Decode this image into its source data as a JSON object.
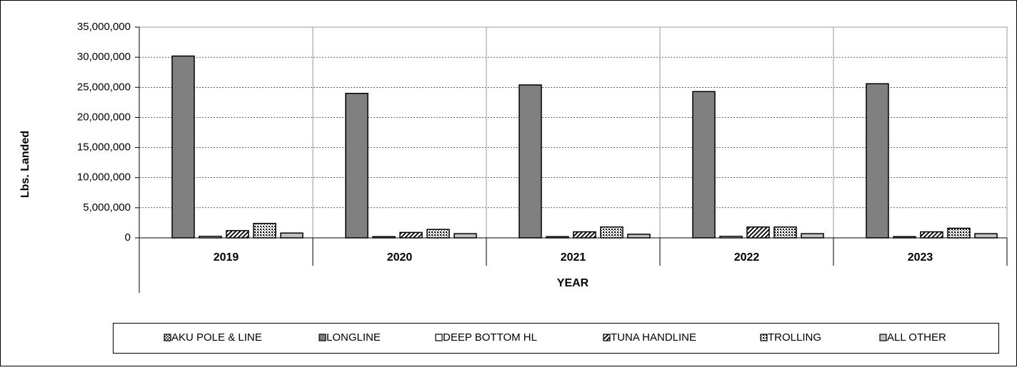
{
  "chart_data": {
    "type": "bar",
    "x_label": "YEAR",
    "y_label": "Lbs. Landed",
    "categories": [
      "2019",
      "2020",
      "2021",
      "2022",
      "2023"
    ],
    "series": [
      {
        "name": "AKU POLE & LINE",
        "color": "#404040",
        "pattern": "checker",
        "values": [
          0,
          0,
          0,
          0,
          0
        ]
      },
      {
        "name": "LONGLINE",
        "color": "#808080",
        "pattern": "solid",
        "values": [
          30200000,
          24000000,
          25400000,
          24300000,
          25600000
        ]
      },
      {
        "name": "DEEP BOTTOM HL",
        "color": "#ffffff",
        "pattern": "solid",
        "values": [
          250000,
          200000,
          200000,
          250000,
          200000
        ]
      },
      {
        "name": "TUNA HANDLINE",
        "color": "#000000",
        "pattern": "diagonal",
        "values": [
          1200000,
          900000,
          1000000,
          1800000,
          1000000
        ]
      },
      {
        "name": "TROLLING",
        "color": "#000000",
        "pattern": "dots",
        "values": [
          2400000,
          1400000,
          1800000,
          1800000,
          1600000
        ]
      },
      {
        "name": "ALL OTHER",
        "color": "#c0c0c0",
        "pattern": "solid",
        "values": [
          800000,
          700000,
          600000,
          700000,
          700000
        ]
      }
    ],
    "ylim": [
      0,
      35000000
    ],
    "yticks": [
      0,
      {
        "value": 5000000,
        "label": "5,000,000"
      },
      {
        "value": 10000000,
        "label": "10,000,000"
      },
      {
        "value": 15000000,
        "label": "15,000,000"
      },
      {
        "value": 20000000,
        "label": "20,000,000"
      },
      {
        "value": 25000000,
        "label": "25,000,000"
      },
      {
        "value": 30000000,
        "label": "30,000,000"
      },
      {
        "value": 35000000,
        "label": "35,000,000"
      }
    ],
    "grid": true,
    "legend": "bottom"
  }
}
